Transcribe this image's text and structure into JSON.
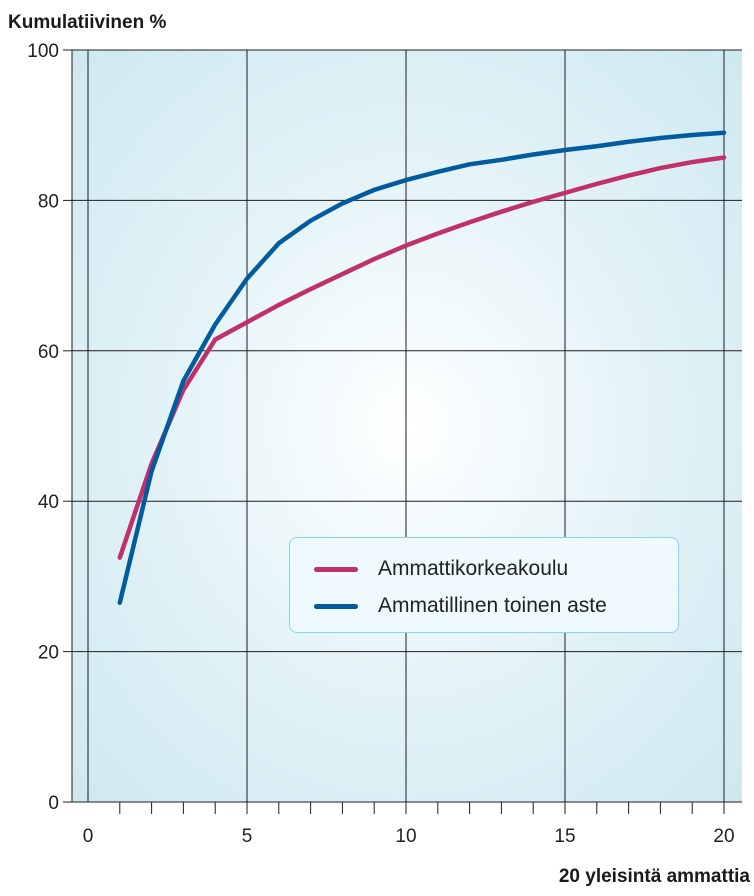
{
  "chart_data": {
    "type": "line",
    "ylabel": "Kumulatiivinen %",
    "xlabel": "20 yleisintä ammattia",
    "xlim": [
      0,
      20
    ],
    "ylim": [
      0,
      100
    ],
    "x_ticks": [
      0,
      5,
      10,
      15,
      20
    ],
    "y_ticks": [
      0,
      20,
      40,
      60,
      80,
      100
    ],
    "grid": true,
    "legend_position": "center-right",
    "x": [
      1,
      2,
      3,
      4,
      5,
      6,
      7,
      8,
      9,
      10,
      11,
      12,
      13,
      14,
      15,
      16,
      17,
      18,
      19,
      20
    ],
    "series": [
      {
        "name": "Ammattikorkeakoulu",
        "color": "#c0306a",
        "values": [
          32.5,
          45.0,
          54.8,
          61.5,
          63.8,
          66.1,
          68.2,
          70.2,
          72.2,
          74.0,
          75.6,
          77.1,
          78.5,
          79.8,
          81.0,
          82.2,
          83.3,
          84.3,
          85.1,
          85.7
        ]
      },
      {
        "name": "Ammatillinen toinen aste",
        "color": "#005c9e",
        "values": [
          26.5,
          44.0,
          56.0,
          63.5,
          69.6,
          74.3,
          77.3,
          79.6,
          81.4,
          82.7,
          83.8,
          84.8,
          85.4,
          86.1,
          86.7,
          87.2,
          87.8,
          88.3,
          88.7,
          89.0
        ]
      }
    ]
  }
}
